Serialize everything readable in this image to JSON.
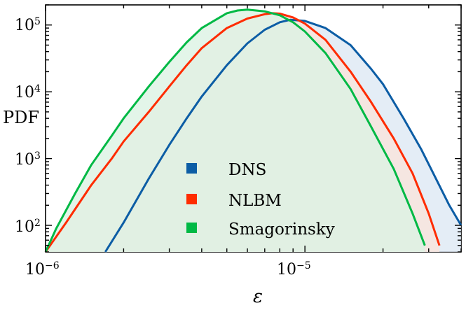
{
  "chart_data": {
    "type": "area",
    "title": "",
    "xlabel": "ε",
    "ylabel": "PDF",
    "xscale": "log",
    "yscale": "log",
    "xlim": [
      1e-06,
      4e-05
    ],
    "ylim": [
      40,
      200000
    ],
    "grid": false,
    "legend_position": "center",
    "x_ticks": [
      {
        "value": 1e-06,
        "label_base": "10",
        "label_exp": "−6"
      },
      {
        "value": 1e-05,
        "label_base": "10",
        "label_exp": "−5"
      }
    ],
    "y_ticks": [
      {
        "value": 100,
        "label_base": "10",
        "label_exp": "2"
      },
      {
        "value": 1000,
        "label_base": "10",
        "label_exp": "3"
      },
      {
        "value": 10000,
        "label_base": "10",
        "label_exp": "4"
      },
      {
        "value": 100000,
        "label_base": "10",
        "label_exp": "5"
      }
    ],
    "series": [
      {
        "name": "DNS",
        "color": "#0C5DA5",
        "fill": "#dde9f4",
        "x": [
          1.7e-06,
          2e-06,
          2.5e-06,
          3e-06,
          3.5e-06,
          4e-06,
          5e-06,
          6e-06,
          7e-06,
          8e-06,
          8.8e-06,
          1e-05,
          1.2e-05,
          1.5e-05,
          1.8e-05,
          2e-05,
          2.4e-05,
          2.8e-05,
          3.2e-05,
          3.6e-05,
          4e-05
        ],
        "y": [
          40,
          110,
          500,
          1600,
          4000,
          8500,
          25000,
          53000,
          85000,
          110000,
          120000,
          115000,
          90000,
          50000,
          22000,
          13000,
          4000,
          1400,
          500,
          200,
          100
        ]
      },
      {
        "name": "NLBM",
        "color": "#FF2C00",
        "fill": "#f9e3dc",
        "x": [
          1e-06,
          1.2e-06,
          1.5e-06,
          1.8e-06,
          2e-06,
          2.5e-06,
          3e-06,
          3.5e-06,
          4e-06,
          5e-06,
          6e-06,
          7e-06,
          7.5e-06,
          8e-06,
          9e-06,
          1e-05,
          1.2e-05,
          1.5e-05,
          1.8e-05,
          2.2e-05,
          2.6e-05,
          3e-05,
          3.3e-05
        ],
        "y": [
          40,
          110,
          400,
          1000,
          1800,
          5000,
          12000,
          25000,
          45000,
          90000,
          125000,
          145000,
          150000,
          148000,
          130000,
          105000,
          60000,
          20000,
          7000,
          2000,
          600,
          150,
          50
        ]
      },
      {
        "name": "Smagorinsky",
        "color": "#00B945",
        "fill": "#dcf3e4",
        "x": [
          1e-06,
          1.1e-06,
          1.3e-06,
          1.5e-06,
          1.8e-06,
          2e-06,
          2.5e-06,
          3e-06,
          3.5e-06,
          4e-06,
          5e-06,
          5.5e-06,
          6e-06,
          7e-06,
          8e-06,
          9e-06,
          1e-05,
          1.2e-05,
          1.5e-05,
          1.8e-05,
          2.2e-05,
          2.6e-05,
          2.9e-05
        ],
        "y": [
          40,
          90,
          300,
          800,
          2200,
          4000,
          12000,
          28000,
          55000,
          90000,
          150000,
          165000,
          170000,
          160000,
          140000,
          110000,
          80000,
          38000,
          11000,
          3000,
          700,
          150,
          50
        ]
      }
    ]
  }
}
